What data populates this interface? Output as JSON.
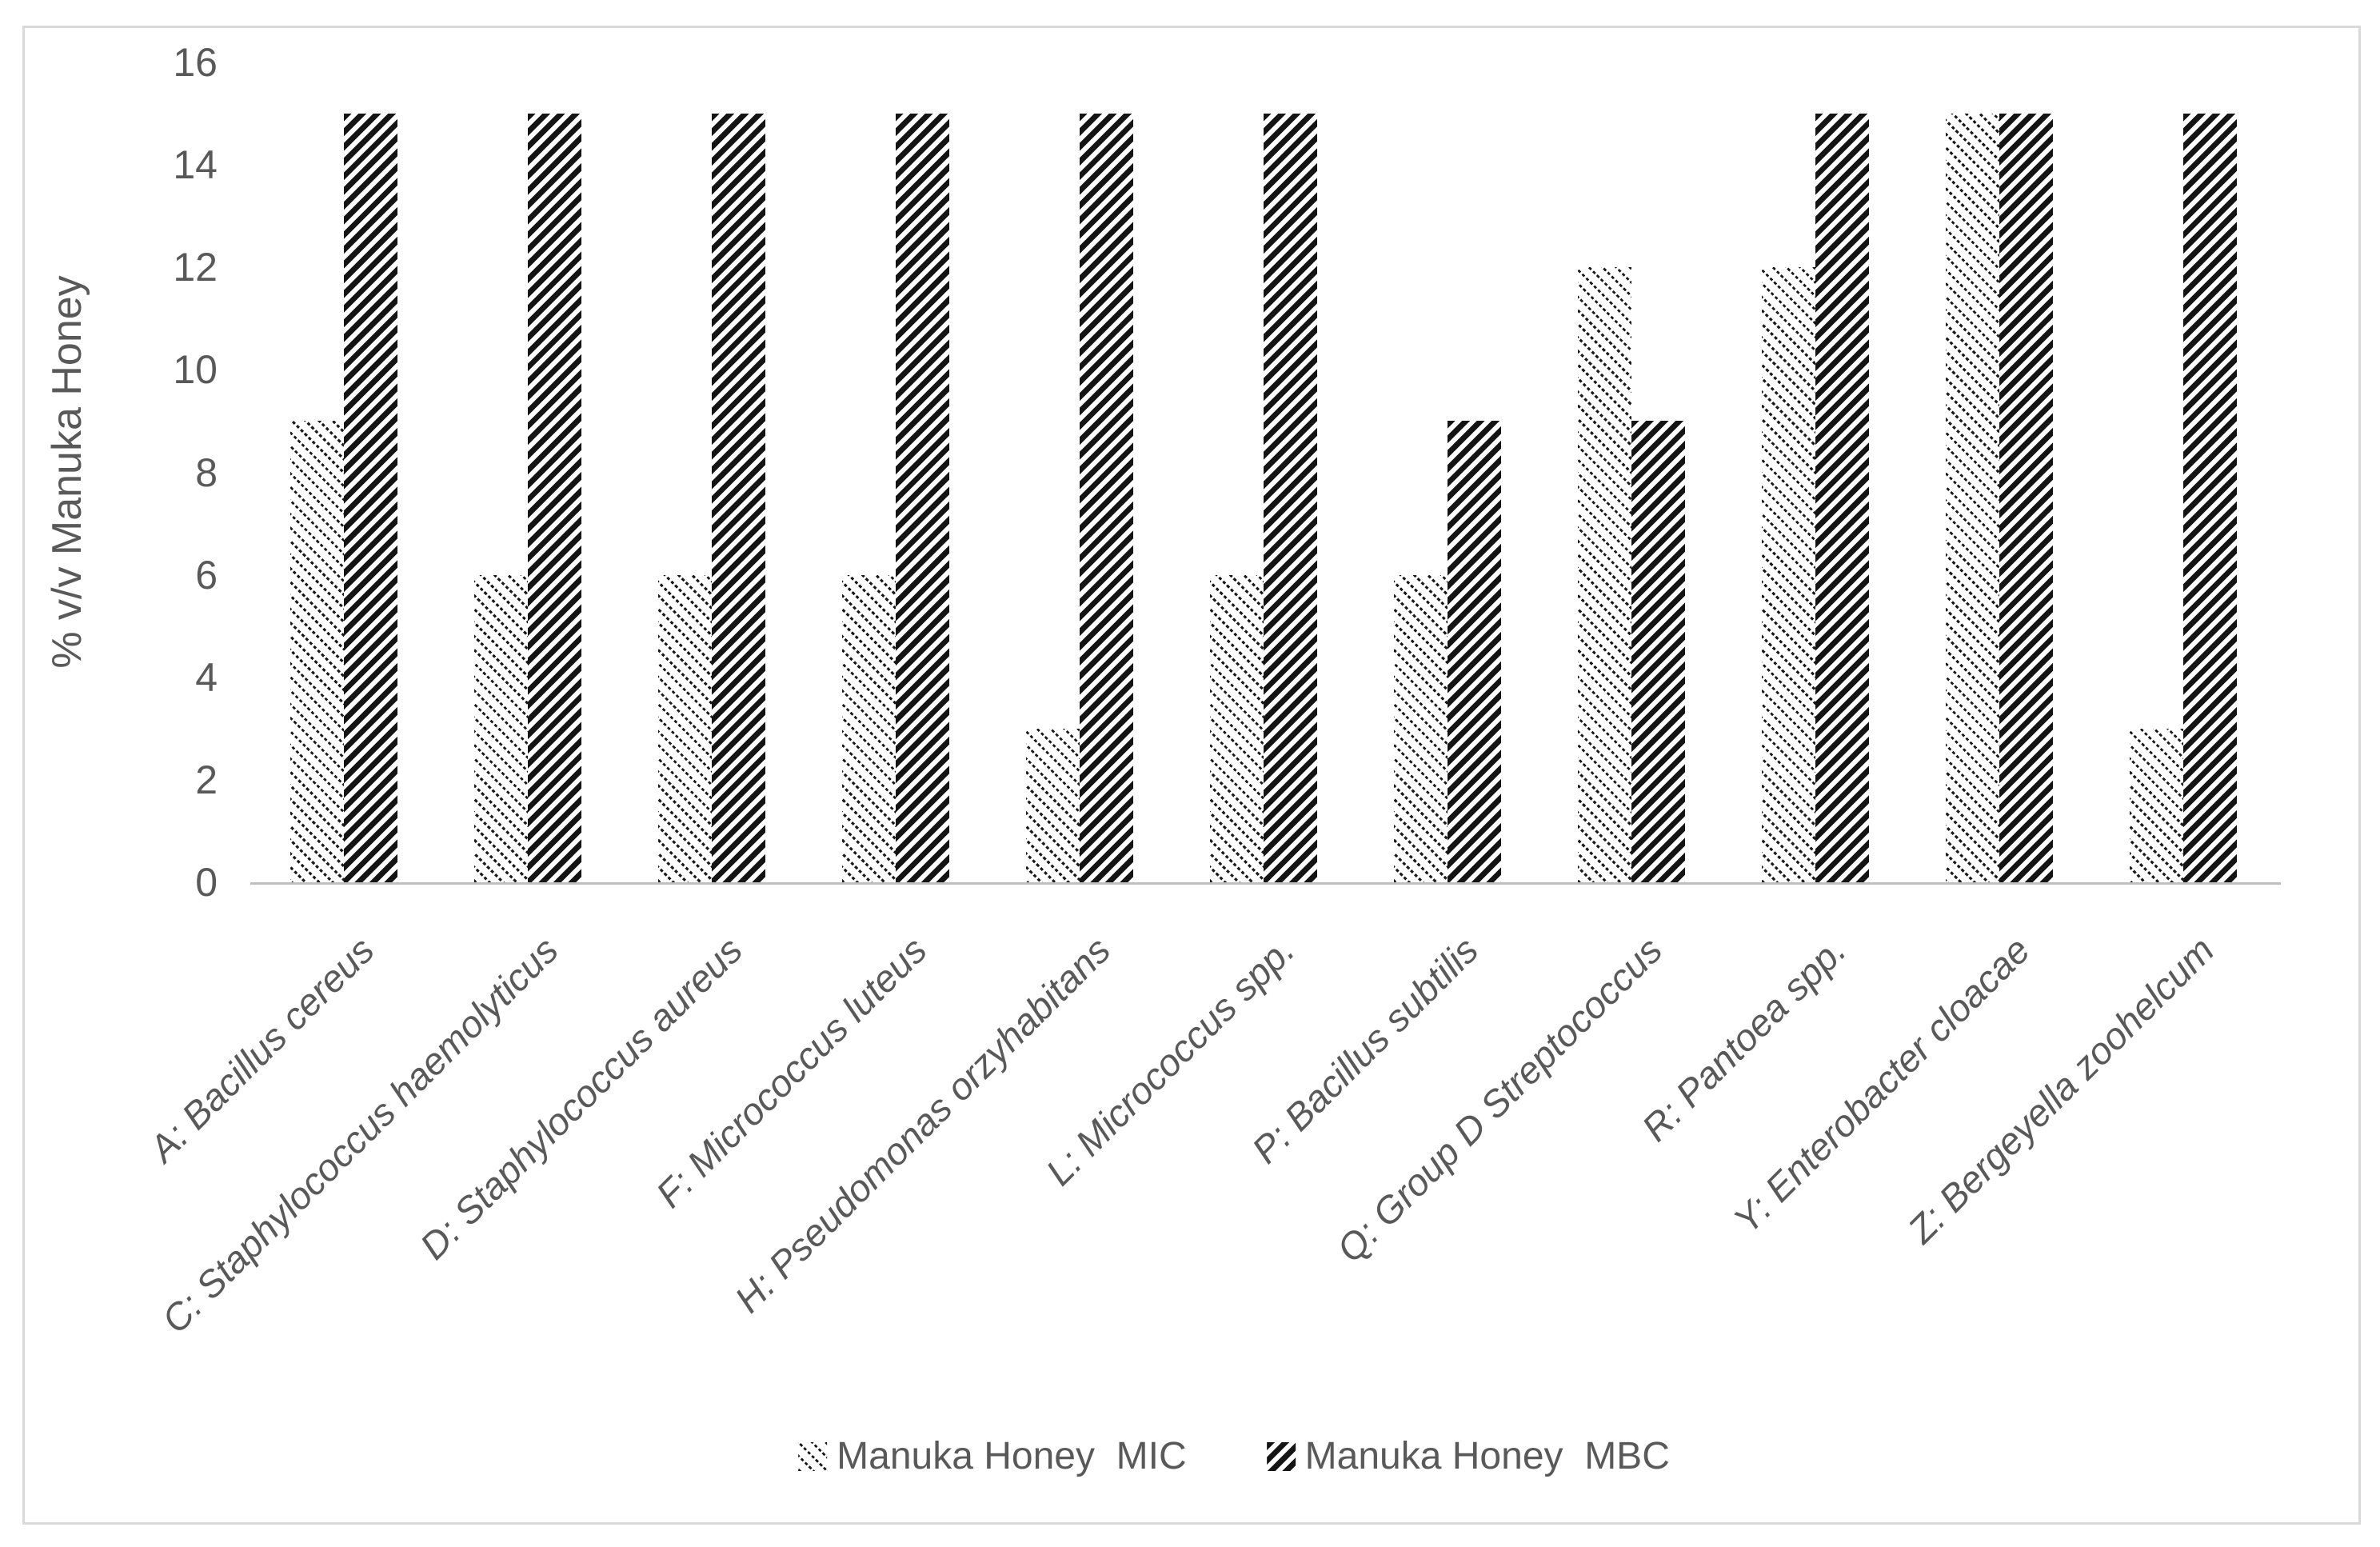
{
  "figure": {
    "frame_color": "#d9d9d9",
    "background": "#ffffff"
  },
  "colors": {
    "text": "#595959",
    "axis_line": "#bfbfbf",
    "hatch": "#1a1a1a"
  },
  "chart_data": {
    "type": "bar",
    "title": "",
    "xlabel": "",
    "ylabel": "% v/v Manuka Honey",
    "ylim": [
      0,
      16
    ],
    "yticks": [
      0,
      2,
      4,
      6,
      8,
      10,
      12,
      14,
      16
    ],
    "grid": false,
    "legend_position": "bottom-center",
    "categories": [
      "A: Bacillus cereus",
      "C: Staphylococcus haemolyticus",
      "D: Staphylococcus aureus",
      "F: Micrococcus luteus",
      "H: Pseudomonas orzyhabitans",
      "L: Micrococcus spp.",
      "P: Bacillus subtilis",
      "Q: Group D Streptococcus",
      "R: Pantoea spp.",
      "Y: Enterobacter cloacae",
      "Z: Bergeyella zoohelcum"
    ],
    "series": [
      {
        "name": "Manuka Honey  MIC",
        "pattern": "light-downward-diagonal-hatch",
        "values": [
          9,
          6,
          6,
          6,
          3,
          6,
          6,
          12,
          12,
          15,
          3
        ]
      },
      {
        "name": "Manuka Honey  MBC",
        "pattern": "wide-upward-diagonal-hatch",
        "values": [
          15,
          15,
          15,
          15,
          15,
          15,
          9,
          9,
          15,
          15,
          15
        ]
      }
    ]
  }
}
